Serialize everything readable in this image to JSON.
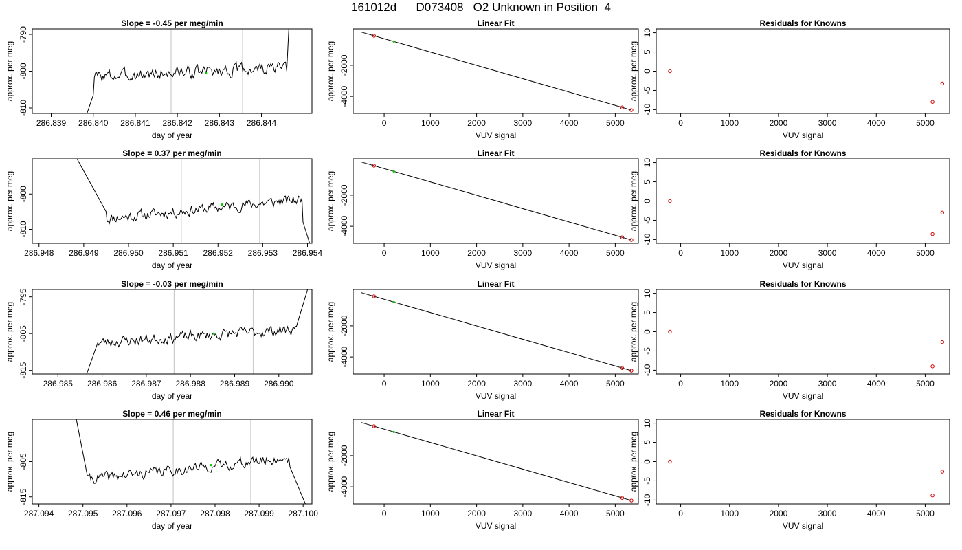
{
  "page": {
    "title": "161012d      D073408   O2 Unknown in Position  4"
  },
  "colors": {
    "trace": "#000000",
    "known_point": "#cc0000",
    "unknown_point": "#00cc00",
    "vline": "#cccccc",
    "frame": "#000000"
  },
  "chart_data": [
    {
      "type": "line",
      "row": 0,
      "col": 0,
      "title": "Slope =  -0.45  per meg/min",
      "xlabel": "day of year",
      "ylabel": "approx. per meg",
      "xlim": [
        286.83855,
        286.8452
      ],
      "ylim": [
        -811.5,
        -788.5
      ],
      "xticks": [
        286.839,
        286.84,
        286.841,
        286.842,
        286.843,
        286.844
      ],
      "xtick_labels": [
        "286.839",
        "286.840",
        "286.841",
        "286.842",
        "286.843",
        "286.844"
      ],
      "yticks": [
        -810,
        -800,
        -790
      ],
      "ytick_labels": [
        "-810",
        "-800",
        "-790"
      ],
      "vlines": [
        286.84185,
        286.84355
      ],
      "highlight_point": {
        "x": 286.84268,
        "y": -800.5
      },
      "trace": {
        "x_start": 286.84,
        "x_end": 286.8446,
        "base_start": -801.5,
        "base_end": -799.0,
        "noise": 2.6,
        "seed": 3,
        "start": {
          "x": 286.83985,
          "y": -811.5,
          "join": 286.8401,
          "join_y": -806.5
        },
        "end": {
          "x": 286.84465,
          "y": -788.5,
          "join": 286.8443,
          "join_y": -800.0
        }
      }
    },
    {
      "type": "scatter",
      "row": 0,
      "col": 1,
      "title": "Linear Fit",
      "xlabel": "VUV signal",
      "ylabel": "approx. per meg",
      "xlim": [
        -670,
        5500
      ],
      "ylim": [
        -5100,
        340
      ],
      "xticks": [
        0,
        1000,
        2000,
        3000,
        4000,
        5000
      ],
      "xtick_labels": [
        "0",
        "1000",
        "2000",
        "3000",
        "4000",
        "5000"
      ],
      "yticks": [
        -4000,
        -2000
      ],
      "ytick_labels": [
        "-4000",
        "-2000"
      ],
      "fit_line": {
        "x": [
          -500,
          5350
        ],
        "y": [
          138,
          -4881
        ]
      },
      "known_points": {
        "x": [
          -220,
          5150,
          5350
        ],
        "y": [
          -102,
          -4713,
          -4881
        ]
      },
      "unknown_points": {
        "x": [
          210
        ],
        "y": [
          -470
        ]
      }
    },
    {
      "type": "scatter",
      "row": 0,
      "col": 2,
      "title": "Residuals for Knowns",
      "xlabel": "VUV signal",
      "ylabel": "approx. per meg",
      "xlim": [
        -500,
        5500
      ],
      "ylim": [
        -11,
        11
      ],
      "xticks": [
        0,
        1000,
        2000,
        3000,
        4000,
        5000
      ],
      "xtick_labels": [
        "0",
        "1000",
        "2000",
        "3000",
        "4000",
        "5000"
      ],
      "yticks": [
        -10,
        -5,
        0,
        5,
        10
      ],
      "ytick_labels": [
        "-10",
        "-5",
        "0",
        "5",
        "10"
      ],
      "known_points": {
        "x": [
          -220,
          5150,
          5350
        ],
        "y": [
          0,
          -8,
          -3.2
        ]
      }
    },
    {
      "type": "line",
      "row": 1,
      "col": 0,
      "title": "Slope =  0.37  per meg/min",
      "xlabel": "day of year",
      "ylabel": "approx. per meg",
      "xlim": [
        286.94785,
        286.9541
      ],
      "ylim": [
        -814,
        -790
      ],
      "xticks": [
        286.948,
        286.949,
        286.95,
        286.951,
        286.952,
        286.953,
        286.954
      ],
      "xtick_labels": [
        "286.948",
        "286.949",
        "286.950",
        "286.951",
        "286.952",
        "286.953",
        "286.954"
      ],
      "yticks": [
        -810,
        -800
      ],
      "ytick_labels": [
        "-810",
        "-800"
      ],
      "vlines": [
        286.95118,
        286.95293
      ],
      "highlight_point": {
        "x": 286.95209,
        "y": -803.0
      },
      "trace": {
        "x_start": 286.9495,
        "x_end": 286.9539,
        "base_start": -807.0,
        "base_end": -801.5,
        "noise": 2.4,
        "seed": 11,
        "start": {
          "x": 286.94885,
          "y": -790,
          "join": 286.9495,
          "join_y": -805.0
        },
        "end": {
          "x": 286.95405,
          "y": -814,
          "join": 286.9539,
          "join_y": -808.0
        }
      }
    },
    {
      "type": "scatter",
      "row": 1,
      "col": 1,
      "title": "Linear Fit",
      "xlabel": "VUV signal",
      "ylabel": "approx. per meg",
      "xlim": [
        -670,
        5500
      ],
      "ylim": [
        -5100,
        340
      ],
      "xticks": [
        0,
        1000,
        2000,
        3000,
        4000,
        5000
      ],
      "xtick_labels": [
        "0",
        "1000",
        "2000",
        "3000",
        "4000",
        "5000"
      ],
      "yticks": [
        -4000,
        -2000
      ],
      "ytick_labels": [
        "-4000",
        "-2000"
      ],
      "fit_line": {
        "x": [
          -500,
          5350
        ],
        "y": [
          138,
          -4881
        ]
      },
      "known_points": {
        "x": [
          -220,
          5150,
          5350
        ],
        "y": [
          -102,
          -4713,
          -4881
        ]
      },
      "unknown_points": {
        "x": [
          210
        ],
        "y": [
          -470
        ]
      }
    },
    {
      "type": "scatter",
      "row": 1,
      "col": 2,
      "title": "Residuals for Knowns",
      "xlabel": "VUV signal",
      "ylabel": "approx. per meg",
      "xlim": [
        -500,
        5500
      ],
      "ylim": [
        -11,
        11
      ],
      "xticks": [
        0,
        1000,
        2000,
        3000,
        4000,
        5000
      ],
      "xtick_labels": [
        "0",
        "1000",
        "2000",
        "3000",
        "4000",
        "5000"
      ],
      "yticks": [
        -10,
        -5,
        0,
        5,
        10
      ],
      "ytick_labels": [
        "-10",
        "-5",
        "0",
        "5",
        "10"
      ],
      "known_points": {
        "x": [
          -220,
          5150,
          5350
        ],
        "y": [
          0,
          -8.6,
          -3.0
        ]
      }
    },
    {
      "type": "line",
      "row": 2,
      "col": 0,
      "title": "Slope =  -0.03  per meg/min",
      "xlabel": "day of year",
      "ylabel": "approx. per meg",
      "xlim": [
        286.98442,
        286.99075
      ],
      "ylim": [
        -816,
        -793
      ],
      "xticks": [
        286.985,
        286.986,
        286.987,
        286.988,
        286.989,
        286.99
      ],
      "xtick_labels": [
        "286.985",
        "286.986",
        "286.987",
        "286.988",
        "286.989",
        "286.990"
      ],
      "yticks": [
        -815,
        -805,
        -795
      ],
      "ytick_labels": [
        "-815",
        "-805",
        "-795"
      ],
      "vlines": [
        286.98763,
        286.98942
      ],
      "highlight_point": {
        "x": 286.98853,
        "y": -805.0
      },
      "trace": {
        "x_start": 286.9859,
        "x_end": 286.9904,
        "base_start": -807.5,
        "base_end": -803.8,
        "noise": 2.3,
        "seed": 23,
        "start": {
          "x": 286.98565,
          "y": -816,
          "join": 286.9859,
          "join_y": -807.5
        },
        "end": {
          "x": 286.99065,
          "y": -793,
          "join": 286.9904,
          "join_y": -803.0
        }
      }
    },
    {
      "type": "scatter",
      "row": 2,
      "col": 1,
      "title": "Linear Fit",
      "xlabel": "VUV signal",
      "ylabel": "approx. per meg",
      "xlim": [
        -670,
        5500
      ],
      "ylim": [
        -5100,
        340
      ],
      "xticks": [
        0,
        1000,
        2000,
        3000,
        4000,
        5000
      ],
      "xtick_labels": [
        "0",
        "1000",
        "2000",
        "3000",
        "4000",
        "5000"
      ],
      "yticks": [
        -4000,
        -2000
      ],
      "ytick_labels": [
        "-4000",
        "-2000"
      ],
      "fit_line": {
        "x": [
          -500,
          5350
        ],
        "y": [
          138,
          -4881
        ]
      },
      "known_points": {
        "x": [
          -220,
          5150,
          5350
        ],
        "y": [
          -102,
          -4713,
          -4881
        ]
      },
      "unknown_points": {
        "x": [
          210
        ],
        "y": [
          -470
        ]
      }
    },
    {
      "type": "scatter",
      "row": 2,
      "col": 2,
      "title": "Residuals for Knowns",
      "xlabel": "VUV signal",
      "ylabel": "approx. per meg",
      "xlim": [
        -500,
        5500
      ],
      "ylim": [
        -11,
        11
      ],
      "xticks": [
        0,
        1000,
        2000,
        3000,
        4000,
        5000
      ],
      "xtick_labels": [
        "0",
        "1000",
        "2000",
        "3000",
        "4000",
        "5000"
      ],
      "yticks": [
        -10,
        -5,
        0,
        5,
        10
      ],
      "ytick_labels": [
        "-10",
        "-5",
        "0",
        "5",
        "10"
      ],
      "known_points": {
        "x": [
          -220,
          5150,
          5350
        ],
        "y": [
          0,
          -9.0,
          -2.7
        ]
      }
    },
    {
      "type": "line",
      "row": 3,
      "col": 0,
      "title": "Slope =  0.46  per meg/min",
      "xlabel": "day of year",
      "ylabel": "approx. per meg",
      "xlim": [
        287.09385,
        287.1002
      ],
      "ylim": [
        -817,
        -793
      ],
      "xticks": [
        287.094,
        287.095,
        287.096,
        287.097,
        287.098,
        287.099,
        287.1
      ],
      "xtick_labels": [
        "287.094",
        "287.095",
        "287.096",
        "287.097",
        "287.098",
        "287.099",
        "287.100"
      ],
      "yticks": [
        -815,
        -805
      ],
      "ytick_labels": [
        "-815",
        "-805"
      ],
      "vlines": [
        287.09705,
        287.09881
      ],
      "highlight_point": {
        "x": 287.09791,
        "y": -806.0
      },
      "trace": {
        "x_start": 287.0951,
        "x_end": 287.0997,
        "base_start": -810.0,
        "base_end": -804.0,
        "noise": 2.3,
        "seed": 41,
        "start": {
          "x": 287.09485,
          "y": -793,
          "join": 287.0951,
          "join_y": -809.0
        },
        "end": {
          "x": 287.10005,
          "y": -817,
          "join": 287.0997,
          "join_y": -806.5
        }
      }
    },
    {
      "type": "scatter",
      "row": 3,
      "col": 1,
      "title": "Linear Fit",
      "xlabel": "VUV signal",
      "ylabel": "approx. per meg",
      "xlim": [
        -670,
        5500
      ],
      "ylim": [
        -5100,
        340
      ],
      "xticks": [
        0,
        1000,
        2000,
        3000,
        4000,
        5000
      ],
      "xtick_labels": [
        "0",
        "1000",
        "2000",
        "3000",
        "4000",
        "5000"
      ],
      "yticks": [
        -4000,
        -2000
      ],
      "ytick_labels": [
        "-4000",
        "-2000"
      ],
      "fit_line": {
        "x": [
          -500,
          5350
        ],
        "y": [
          138,
          -4881
        ]
      },
      "known_points": {
        "x": [
          -220,
          5150,
          5350
        ],
        "y": [
          -102,
          -4713,
          -4881
        ]
      },
      "unknown_points": {
        "x": [
          210
        ],
        "y": [
          -470
        ]
      }
    },
    {
      "type": "scatter",
      "row": 3,
      "col": 2,
      "title": "Residuals for Knowns",
      "xlabel": "VUV signal",
      "ylabel": "approx. per meg",
      "xlim": [
        -500,
        5500
      ],
      "ylim": [
        -11,
        11
      ],
      "xticks": [
        0,
        1000,
        2000,
        3000,
        4000,
        5000
      ],
      "xtick_labels": [
        "0",
        "1000",
        "2000",
        "3000",
        "4000",
        "5000"
      ],
      "yticks": [
        -10,
        -5,
        0,
        5,
        10
      ],
      "ytick_labels": [
        "-10",
        "-5",
        "0",
        "5",
        "10"
      ],
      "known_points": {
        "x": [
          -220,
          5150,
          5350
        ],
        "y": [
          0,
          -8.8,
          -2.6
        ]
      }
    }
  ]
}
